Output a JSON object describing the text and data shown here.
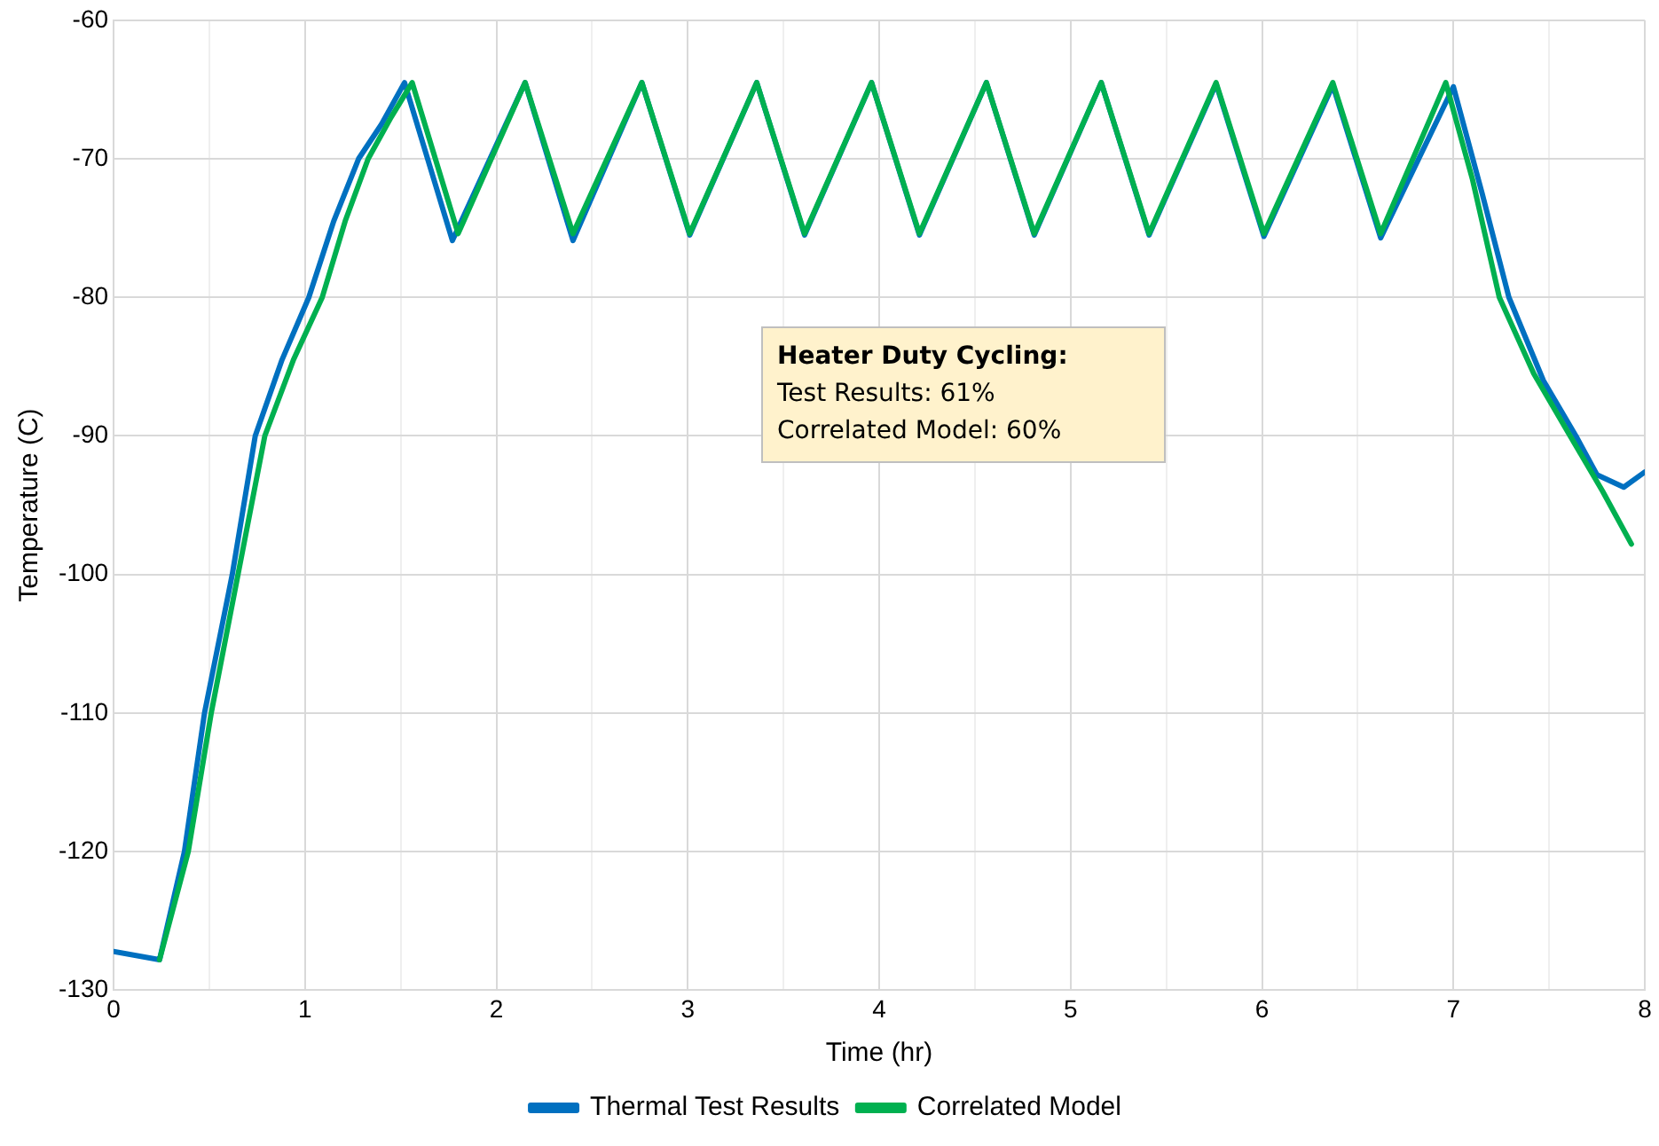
{
  "chart_data": {
    "type": "line",
    "xlabel": "Time (hr)",
    "ylabel": "Temperature (C)",
    "xlim": [
      0,
      8
    ],
    "xticks": [
      0,
      {
        "value": 0.5,
        "label": null
      },
      1,
      {
        "value": 1.5,
        "label": null
      },
      2,
      {
        "value": 2.5,
        "label": null
      },
      3,
      {
        "value": 3.5,
        "label": null
      },
      4,
      {
        "value": 4.5,
        "label": null
      },
      5,
      {
        "value": 5.5,
        "label": null
      },
      6,
      {
        "value": 6.5,
        "label": null
      },
      7,
      {
        "value": 7.5,
        "label": null
      },
      8
    ],
    "ylim": [
      -130,
      -60
    ],
    "yticks": [
      -130,
      -120,
      -110,
      -100,
      -90,
      -80,
      -70,
      -60
    ],
    "grid": true,
    "legend": "bottom",
    "marker": "none",
    "line_style": "solid",
    "annotations": [
      "Heater Duty Cycling:",
      "Test Results: 61%",
      "Correlated Model: 60%"
    ],
    "series": [
      {
        "name": "Thermal Test Results",
        "color": "#0070c0",
        "x": [
          0,
          0.24,
          0.37,
          0.475,
          0.62,
          0.74,
          0.88,
          1.02,
          1.15,
          1.28,
          1.4,
          1.52,
          1.77,
          2.15,
          2.4,
          2.76,
          3.01,
          3.36,
          3.61,
          3.96,
          4.21,
          4.56,
          4.81,
          5.16,
          5.41,
          5.76,
          6.01,
          6.37,
          6.62,
          7.0,
          7.15,
          7.29,
          7.47,
          7.64,
          7.75,
          7.89,
          8.0
        ],
        "values": [
          -127.2,
          -127.8,
          -120,
          -110,
          -100,
          -90,
          -84.5,
          -80,
          -74.5,
          -70,
          -67.5,
          -64.5,
          -75.9,
          -64.5,
          -75.9,
          -64.5,
          -75.5,
          -64.5,
          -75.5,
          -64.5,
          -75.5,
          -64.5,
          -75.5,
          -64.5,
          -75.5,
          -64.6,
          -75.6,
          -64.7,
          -75.7,
          -64.8,
          -72.5,
          -80,
          -86,
          -90,
          -92.8,
          -93.7,
          -92.6
        ]
      },
      {
        "name": "Correlated Model",
        "color": "#00b050",
        "x": [
          0.24,
          0.39,
          0.51,
          0.65,
          0.79,
          0.94,
          1.09,
          1.21,
          1.33,
          1.45,
          1.56,
          1.8,
          2.15,
          2.4,
          2.76,
          3.01,
          3.36,
          3.61,
          3.96,
          4.21,
          4.56,
          4.81,
          5.16,
          5.41,
          5.76,
          6.01,
          6.37,
          6.62,
          6.96,
          7.1,
          7.24,
          7.42,
          7.61,
          7.78,
          7.93
        ],
        "values": [
          -127.8,
          -120,
          -110,
          -100,
          -90,
          -84.5,
          -80,
          -74.5,
          -70,
          -67,
          -64.5,
          -75.4,
          -64.5,
          -75.4,
          -64.5,
          -75.4,
          -64.5,
          -75.4,
          -64.5,
          -75.4,
          -64.5,
          -75.4,
          -64.5,
          -75.4,
          -64.5,
          -75.4,
          -64.5,
          -75.4,
          -64.5,
          -71.5,
          -80,
          -85.5,
          -90,
          -94,
          -97.8
        ]
      }
    ]
  }
}
